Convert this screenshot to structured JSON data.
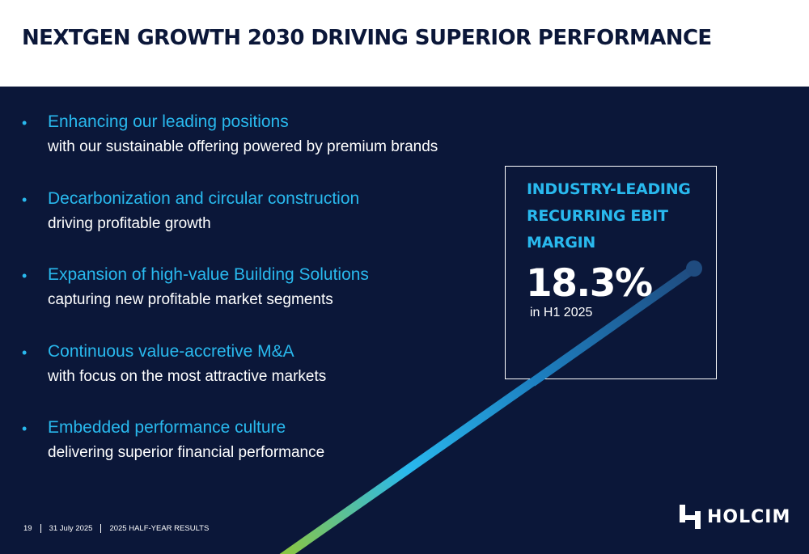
{
  "title": "NEXTGEN GROWTH 2030 DRIVING SUPERIOR PERFORMANCE",
  "bullets": [
    {
      "head": "Enhancing our leading positions",
      "sub": "with our sustainable offering powered by premium brands"
    },
    {
      "head": "Decarbonization and circular construction",
      "sub": "driving profitable growth"
    },
    {
      "head": "Expansion of high-value Building Solutions",
      "sub": "capturing new profitable market segments"
    },
    {
      "head": "Continuous value-accretive M&A",
      "sub": "with focus on the most attractive markets"
    },
    {
      "head": "Embedded performance culture",
      "sub": "delivering superior financial performance"
    }
  ],
  "kpi": {
    "label": "INDUSTRY-LEADING RECURRING EBIT MARGIN",
    "value": "18.3%",
    "note": "in H1 2025"
  },
  "footer": {
    "page": "19",
    "date": "31 July 2025",
    "section": "2025 HALF-YEAR RESULTS"
  },
  "logo": {
    "text": "HOLCIM"
  },
  "icons": {
    "bullet": "bullet-dot",
    "logo": "holcim-h-icon"
  },
  "colors": {
    "background": "#0b1739",
    "accent": "#29b9ee",
    "text": "#ffffff",
    "line_gradient": [
      "#8cc63f",
      "#29b9ee",
      "#1f4b7f"
    ]
  }
}
